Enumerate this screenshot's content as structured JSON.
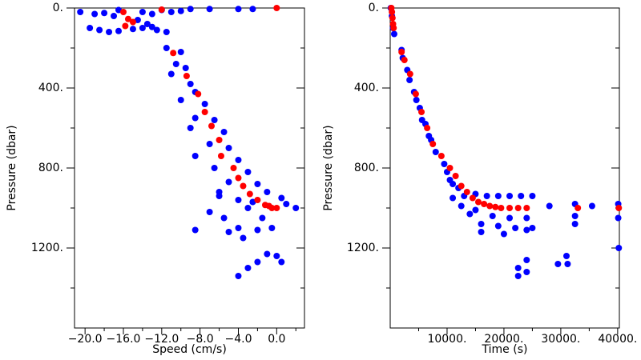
{
  "chart_data": [
    {
      "type": "scatter",
      "x_label": "Speed (cm/s)",
      "y_label": "Pressure (dbar)",
      "xlim": [
        -21.1,
        2.9
      ],
      "ylim": [
        0,
        1600
      ],
      "y_reversed": true,
      "xticks": [
        {
          "value": -20,
          "label": "−20.0"
        },
        {
          "value": -16,
          "label": "−16.0"
        },
        {
          "value": -12,
          "label": "−12.0"
        },
        {
          "value": -8,
          "label": "−8.0"
        },
        {
          "value": -4,
          "label": "−4.0"
        },
        {
          "value": 0,
          "label": "0.0"
        }
      ],
      "xminor": [
        -18,
        -14,
        -10,
        -6,
        -2,
        2
      ],
      "yticks": [
        {
          "value": 0,
          "label": "0."
        },
        {
          "value": 400,
          "label": "400."
        },
        {
          "value": 800,
          "label": "800."
        },
        {
          "value": 1200,
          "label": "1200."
        }
      ],
      "yminor": [
        200,
        600,
        1000,
        1400
      ],
      "series": [
        {
          "color": "#0000ff",
          "x": [
            -20.5,
            -19,
            -18,
            -17,
            -16.5,
            -14,
            -13,
            -12,
            -11,
            -10,
            -9,
            -7,
            -4,
            -2.5,
            -19.5,
            -18.5,
            -17.5,
            -16.5,
            -15,
            -14,
            -13,
            -12.5,
            -11.5,
            -14.5,
            -13.5,
            -11.5,
            -10,
            -10.5,
            -9.5,
            -11,
            -9,
            -8.5,
            -10,
            -7.5,
            -8.5,
            -6.5,
            -9,
            -5.5,
            -7,
            -5,
            -8.5,
            -4,
            -6.5,
            -3,
            -5,
            -2,
            -6,
            -1,
            -4,
            0.5,
            -3,
            1,
            2,
            -1.5,
            -5.5,
            -4,
            -2,
            -0.5,
            -7,
            -8.5,
            -1,
            0,
            0.5,
            -2,
            -3,
            -4,
            -5,
            -3.5,
            -6,
            -2.5
          ],
          "values": [
            20,
            30,
            25,
            40,
            10,
            20,
            30,
            10,
            20,
            15,
            5,
            5,
            5,
            5,
            100,
            110,
            120,
            115,
            105,
            100,
            95,
            110,
            120,
            60,
            80,
            200,
            220,
            280,
            300,
            330,
            380,
            420,
            460,
            480,
            550,
            560,
            600,
            620,
            680,
            700,
            740,
            760,
            800,
            820,
            870,
            880,
            920,
            920,
            960,
            950,
            1000,
            980,
            1000,
            1050,
            1050,
            1100,
            1110,
            1100,
            1020,
            1110,
            1230,
            1240,
            1270,
            1270,
            1300,
            1340,
            1120,
            1150,
            940,
            970
          ]
        },
        {
          "color": "#ff0000",
          "x": [
            -16,
            -15.5,
            -15,
            -15.8,
            -12,
            0,
            -10.8,
            -9.4,
            -8.2,
            -7.5,
            -6.8,
            -6,
            -5.8,
            -4.5,
            -4,
            -3.5,
            -2.8,
            -2,
            -1.2,
            -0.5,
            0,
            -0.8
          ],
          "values": [
            20,
            55,
            70,
            90,
            8,
            0,
            225,
            340,
            430,
            520,
            590,
            660,
            740,
            800,
            850,
            890,
            930,
            960,
            985,
            1000,
            1000,
            990
          ]
        }
      ]
    },
    {
      "type": "scatter",
      "x_label": "Time (s)",
      "y_label": "Pressure (dbar)",
      "xlim": [
        0,
        40300
      ],
      "ylim": [
        0,
        1600
      ],
      "y_reversed": true,
      "xticks": [
        {
          "value": 10000,
          "label": "10000."
        },
        {
          "value": 20000,
          "label": "20000."
        },
        {
          "value": 30000,
          "label": "30000."
        },
        {
          "value": 40000,
          "label": "40000."
        }
      ],
      "xminor": [
        5000,
        15000,
        25000,
        35000
      ],
      "yticks": [
        {
          "value": 0,
          "label": "0."
        },
        {
          "value": 400,
          "label": "400."
        },
        {
          "value": 800,
          "label": "800."
        },
        {
          "value": 1200,
          "label": "1200."
        }
      ],
      "yminor": [
        200,
        600,
        1000,
        1400
      ],
      "series": [
        {
          "color": "#0000ff",
          "x": [
            100,
            300,
            500,
            700,
            2000,
            2200,
            3000,
            3400,
            4200,
            4600,
            5200,
            5600,
            6200,
            6800,
            7200,
            8000,
            9500,
            10000,
            10500,
            11000,
            12000,
            13000,
            15000,
            17000,
            19000,
            21000,
            23000,
            25000,
            15000,
            18000,
            21000,
            24000,
            14000,
            16000,
            19000,
            22000,
            25000,
            16000,
            20000,
            24000,
            28000,
            32500,
            32500,
            32500,
            35500,
            40100,
            40100,
            40200,
            22500,
            22500,
            24000,
            24000,
            29500,
            31000,
            31200,
            12500,
            11000
          ],
          "values": [
            0,
            40,
            100,
            130,
            210,
            250,
            310,
            360,
            420,
            460,
            500,
            560,
            580,
            640,
            660,
            720,
            780,
            820,
            860,
            880,
            900,
            940,
            930,
            940,
            940,
            940,
            940,
            940,
            1010,
            1040,
            1050,
            1050,
            1030,
            1080,
            1090,
            1100,
            1100,
            1120,
            1130,
            1110,
            990,
            980,
            1040,
            1080,
            990,
            980,
            1050,
            1200,
            1340,
            1300,
            1320,
            1260,
            1280,
            1240,
            1280,
            990,
            950
          ]
        },
        {
          "color": "#ff0000",
          "x": [
            200,
            300,
            400,
            500,
            600,
            2000,
            2500,
            3500,
            4500,
            5500,
            6500,
            7500,
            9000,
            10500,
            11500,
            12500,
            13500,
            14500,
            15500,
            16500,
            17500,
            18500,
            19500,
            21000,
            22500,
            24000,
            33000,
            40200
          ],
          "values": [
            0,
            20,
            50,
            80,
            100,
            220,
            260,
            330,
            430,
            520,
            600,
            680,
            740,
            800,
            840,
            890,
            920,
            950,
            970,
            980,
            990,
            995,
            1000,
            1000,
            1000,
            1000,
            1000,
            1000
          ]
        }
      ]
    }
  ]
}
